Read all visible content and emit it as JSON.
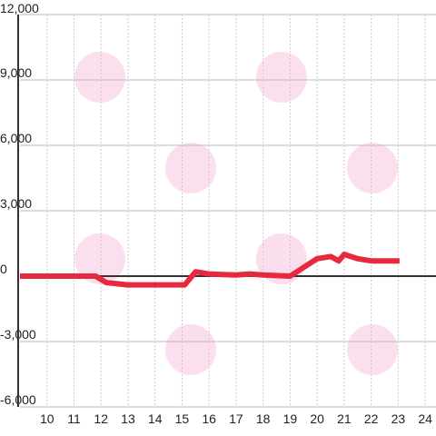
{
  "chart_data": {
    "type": "line",
    "x": [
      9,
      11.8,
      12.2,
      13,
      15.1,
      15.5,
      16,
      17,
      17.5,
      18,
      19,
      19.5,
      20,
      20.5,
      20.8,
      21,
      21.5,
      22,
      23.05
    ],
    "series": [
      {
        "color": "#e8283c",
        "values": [
          0,
          0,
          -300,
          -400,
          -400,
          200,
          100,
          50,
          100,
          50,
          0,
          400,
          800,
          900,
          700,
          1000,
          800,
          700,
          700
        ]
      }
    ],
    "xlim": [
      9,
      24.4
    ],
    "xticks": [
      10,
      11,
      12,
      13,
      14,
      15,
      16,
      17,
      18,
      19,
      20,
      21,
      22,
      23,
      24
    ],
    "ylim": [
      -6000,
      12000
    ],
    "yticks": [
      {
        "value": -6000,
        "label": "-6,000"
      },
      {
        "value": -3000,
        "label": "-3,000"
      },
      0,
      {
        "value": 3000,
        "label": "3,000"
      },
      {
        "value": 6000,
        "label": "6,000"
      },
      {
        "value": 9000,
        "label": "9,000"
      },
      {
        "value": 12000,
        "label": "12,000"
      }
    ],
    "grid": true
  }
}
